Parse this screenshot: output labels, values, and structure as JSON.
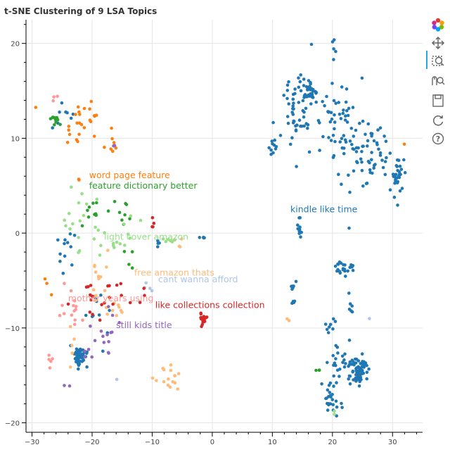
{
  "chart_data": {
    "type": "scatter",
    "title": "t-SNE Clustering of 9 LSA Topics",
    "xlim": [
      -31,
      35
    ],
    "ylim": [
      -21,
      22.5
    ],
    "xticks": [
      -30,
      -20,
      -10,
      0,
      10,
      20,
      30
    ],
    "yticks": [
      20,
      10,
      0,
      -10,
      -20
    ],
    "grid": true,
    "series": [
      {
        "color": "#1f77b4",
        "blobs": [
          [
            -22,
            -13,
            0.8,
            0.9,
            55
          ],
          [
            -24,
            -2,
            2.5,
            3,
            12
          ],
          [
            -24.5,
            13,
            1.5,
            1.5,
            8
          ],
          [
            -19,
            -9,
            2,
            3,
            10
          ],
          [
            14,
            13,
            2.5,
            3.5,
            60
          ],
          [
            16.5,
            14.8,
            0.8,
            0.8,
            30
          ],
          [
            21,
            11.5,
            3,
            4,
            50
          ],
          [
            25,
            9,
            3,
            3,
            40
          ],
          [
            28,
            8,
            2.5,
            2,
            20
          ],
          [
            31,
            6,
            1.2,
            1.5,
            30
          ],
          [
            10,
            9.2,
            1,
            1,
            10
          ],
          [
            20,
            19.5,
            0.4,
            1.5,
            5
          ],
          [
            14.5,
            0.3,
            0.4,
            1.2,
            12
          ],
          [
            22,
            -3.7,
            1.2,
            0.6,
            22
          ],
          [
            13.5,
            -6.5,
            0.6,
            1.5,
            10
          ],
          [
            23,
            -8,
            0.5,
            0.8,
            6
          ],
          [
            19.5,
            -10,
            1.2,
            0.8,
            8
          ],
          [
            24.5,
            -14.5,
            1,
            1.2,
            60
          ],
          [
            22,
            -14,
            3,
            2.5,
            35
          ],
          [
            20,
            -17.5,
            1.5,
            1.5,
            25
          ],
          [
            -1,
            -0.5,
            1,
            0.3,
            4
          ],
          [
            -9,
            -1,
            1,
            0.5,
            4
          ]
        ]
      },
      {
        "color": "#aec7e8",
        "blobs": [
          [
            -10.5,
            -5.7,
            0.8,
            0.8,
            4
          ],
          [
            26,
            -9,
            0.3,
            0.3,
            1
          ],
          [
            -16,
            -15.5,
            0.3,
            0.3,
            1
          ]
        ]
      },
      {
        "color": "#ff7f0e",
        "blobs": [
          [
            -21,
            12,
            4,
            2,
            26
          ],
          [
            -17,
            9,
            1.5,
            0.8,
            6
          ],
          [
            -22,
            5.5,
            0.3,
            0.3,
            2
          ],
          [
            -27.5,
            -6,
            0.5,
            1,
            3
          ],
          [
            32,
            9.5,
            0.3,
            0.3,
            1
          ]
        ]
      },
      {
        "color": "#ffbb78",
        "blobs": [
          [
            -19,
            -5,
            2,
            2.5,
            14
          ],
          [
            -16,
            -7.5,
            2,
            1.5,
            8
          ],
          [
            -7,
            -15.3,
            1.5,
            1,
            16
          ],
          [
            -6,
            -1,
            1,
            0.5,
            4
          ],
          [
            -23,
            -12,
            1,
            2,
            6
          ],
          [
            12.5,
            -9,
            0.3,
            0.6,
            2
          ]
        ]
      },
      {
        "color": "#2ca02c",
        "blobs": [
          [
            -26,
            12,
            0.8,
            0.8,
            12
          ],
          [
            -20,
            2,
            2,
            1.5,
            10
          ],
          [
            -15,
            2.5,
            2,
            1.5,
            8
          ],
          [
            -13.5,
            -3,
            1,
            1,
            4
          ],
          [
            17.5,
            -14.5,
            0.4,
            0.3,
            3
          ]
        ]
      },
      {
        "color": "#98df8a",
        "blobs": [
          [
            -22,
            1.5,
            2.5,
            3,
            16
          ],
          [
            -17,
            -1,
            2,
            1.5,
            10
          ],
          [
            -14,
            0.5,
            1.5,
            2,
            6
          ],
          [
            -7,
            -0.8,
            1,
            0.5,
            6
          ],
          [
            20.5,
            -19,
            0.3,
            0.3,
            2
          ]
        ]
      },
      {
        "color": "#d62728",
        "blobs": [
          [
            -1.5,
            -9,
            0.5,
            0.6,
            22
          ],
          [
            -20,
            -7,
            2.5,
            2,
            14
          ],
          [
            -16,
            -6,
            1.5,
            1.5,
            6
          ],
          [
            -10,
            0.8,
            0.2,
            0.6,
            4
          ],
          [
            -12,
            -7,
            1,
            1,
            4
          ]
        ]
      },
      {
        "color": "#ff9896",
        "blobs": [
          [
            -23,
            -8.5,
            2,
            2,
            14
          ],
          [
            -27,
            -13.5,
            0.6,
            0.8,
            5
          ],
          [
            -26,
            14.5,
            0.5,
            0.5,
            3
          ]
        ]
      },
      {
        "color": "#9467bd",
        "blobs": [
          [
            -17.5,
            -10.5,
            2,
            2,
            14
          ],
          [
            -21,
            -13,
            1,
            1,
            4
          ],
          [
            -16.5,
            9.3,
            0.4,
            0.4,
            2
          ],
          [
            -24,
            -16,
            0.5,
            0.5,
            2
          ]
        ]
      }
    ],
    "annotations": [
      {
        "text": "word page feature",
        "x": -20.5,
        "y": 5.8,
        "color": "#ff7f0e"
      },
      {
        "text": "feature dictionary better",
        "x": -20.5,
        "y": 4.7,
        "color": "#2ca02c"
      },
      {
        "text": "kindle like time",
        "x": 13,
        "y": 2.2,
        "color": "#1f77b4"
      },
      {
        "text": "light cover amazon",
        "x": -18,
        "y": -0.7,
        "color": "#98df8a"
      },
      {
        "text": "free amazon thats",
        "x": -13,
        "y": -4.5,
        "color": "#ffbb78"
      },
      {
        "text": "cant wanna afford",
        "x": -9,
        "y": -5.2,
        "color": "#aec7e8"
      },
      {
        "text": "mother years using",
        "x": -24,
        "y": -7.2,
        "color": "#ff9896"
      },
      {
        "text": "like collections collection",
        "x": -9.5,
        "y": -7.9,
        "color": "#d62728"
      },
      {
        "text": "still kids title",
        "x": -16,
        "y": -10,
        "color": "#9467bd"
      }
    ]
  },
  "toolbar": {
    "tools": [
      "bokeh-logo-icon",
      "pan-icon",
      "box-zoom-icon",
      "wheel-zoom-icon",
      "save-icon",
      "reset-icon",
      "help-icon"
    ]
  }
}
